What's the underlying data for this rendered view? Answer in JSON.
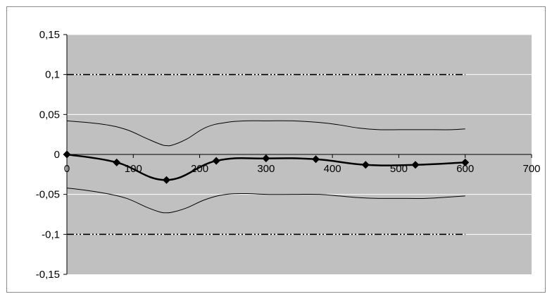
{
  "chart_data": {
    "type": "line",
    "title": "",
    "xlabel": "",
    "ylabel": "",
    "xlim": [
      0,
      700
    ],
    "ylim": [
      -0.15,
      0.15
    ],
    "x_ticks": [
      0,
      100,
      200,
      300,
      400,
      500,
      600,
      700
    ],
    "x_tick_labels": [
      "0",
      "100",
      "200",
      "300",
      "400",
      "500",
      "600",
      "700"
    ],
    "y_ticks": [
      0.15,
      0.1,
      0.05,
      0,
      -0.05,
      -0.1,
      -0.15
    ],
    "y_tick_labels": [
      "0,15",
      "0,1",
      "0,05",
      "0",
      "-0,05",
      "-0,1",
      "-0,15"
    ],
    "grid": "horizontal",
    "legend": "none",
    "plot_background": "#c0c0c0",
    "series": [
      {
        "style": "solid-bold-diamond-markers",
        "color": "#000000",
        "x": [
          0,
          75,
          150,
          225,
          300,
          375,
          450,
          525,
          600
        ],
        "y": [
          0,
          -0.01,
          -0.032,
          -0.008,
          -0.005,
          -0.006,
          -0.013,
          -0.013,
          -0.01
        ]
      },
      {
        "style": "thin-solid",
        "color": "#000000",
        "x": [
          0,
          30,
          60,
          90,
          120,
          140,
          150,
          160,
          180,
          210,
          240,
          270,
          300,
          340,
          380,
          410,
          440,
          470,
          500,
          540,
          580,
          600
        ],
        "y": [
          0.042,
          0.04,
          0.037,
          0.031,
          0.02,
          0.013,
          0.011,
          0.012,
          0.019,
          0.034,
          0.04,
          0.042,
          0.042,
          0.042,
          0.04,
          0.037,
          0.033,
          0.031,
          0.031,
          0.031,
          0.031,
          0.032
        ]
      },
      {
        "style": "thin-solid",
        "color": "#000000",
        "x": [
          0,
          30,
          60,
          90,
          120,
          140,
          150,
          160,
          180,
          210,
          240,
          270,
          300,
          340,
          380,
          410,
          440,
          470,
          500,
          540,
          580,
          600
        ],
        "y": [
          -0.042,
          -0.045,
          -0.049,
          -0.055,
          -0.066,
          -0.072,
          -0.073,
          -0.072,
          -0.067,
          -0.056,
          -0.05,
          -0.049,
          -0.05,
          -0.05,
          -0.05,
          -0.052,
          -0.054,
          -0.055,
          -0.055,
          -0.055,
          -0.053,
          -0.052
        ]
      },
      {
        "style": "dash-dot-dot",
        "color": "#000000",
        "x": [
          0,
          600
        ],
        "y": [
          0.1,
          0.1
        ]
      },
      {
        "style": "dash-dot-dot",
        "color": "#000000",
        "x": [
          0,
          600
        ],
        "y": [
          -0.1,
          -0.1
        ]
      }
    ]
  }
}
